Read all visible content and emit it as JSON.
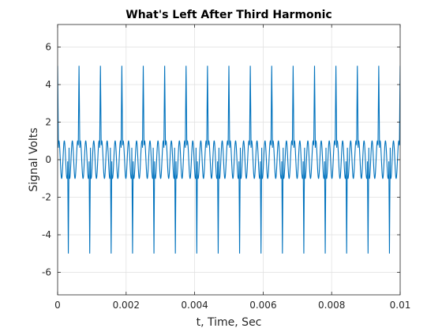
{
  "chart_data": {
    "type": "line",
    "title": "What's Left After Third Harmonic",
    "xlabel": "t, Time, Sec",
    "ylabel": "Signal Volts",
    "xlim": [
      0,
      0.01
    ],
    "ylim": [
      -7.2,
      7.2
    ],
    "grid": true,
    "x_ticks": [
      0,
      0.002,
      0.004,
      0.006,
      0.008,
      0.01
    ],
    "x_tick_labels": [
      "0",
      "0.002",
      "0.004",
      "0.006",
      "0.008",
      "0.01"
    ],
    "y_ticks": [
      -6,
      -4,
      -2,
      0,
      2,
      4,
      6
    ],
    "y_tick_labels": [
      "-6",
      "-4",
      "-2",
      "0",
      "2",
      "4",
      "6"
    ],
    "series": [
      {
        "color": "#0072BD",
        "waveform": "periodic",
        "period": 0.000625,
        "t_start": 0,
        "t_end": 0.01,
        "sample_step": 5e-06,
        "peak_positive": 5,
        "peak_negative": -5,
        "ripple_amplitude": 1,
        "ripple_cycles_per_period": 4
      }
    ]
  }
}
